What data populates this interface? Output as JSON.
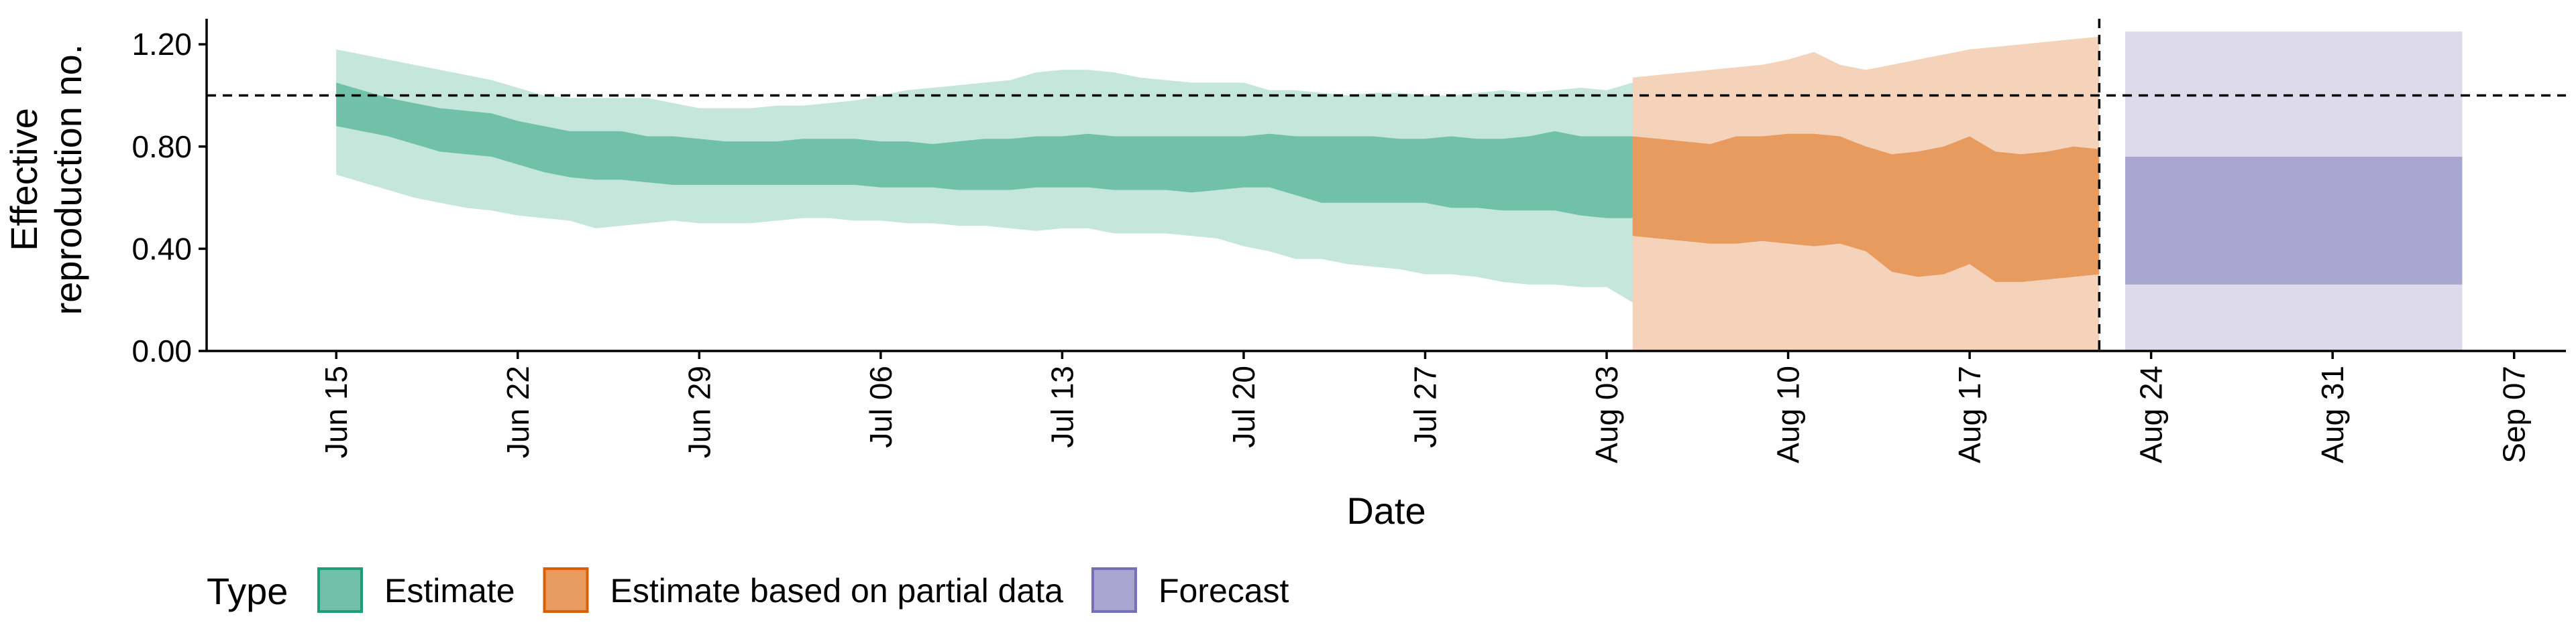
{
  "chart_data": {
    "type": "area",
    "title": "",
    "xlabel": "Date",
    "ylabel_lines": [
      "Effective",
      "reproduction no."
    ],
    "ylim": [
      0,
      1.3
    ],
    "yticks": [
      0,
      0.4,
      0.8,
      1.2
    ],
    "ytick_labels": [
      "0.00",
      "0.40",
      "0.80",
      "1.20"
    ],
    "reference_line_y": 1.0,
    "forecast_start_date": "2020-08-22",
    "xlim": [
      "2020-06-10",
      "2020-09-09"
    ],
    "xticks": [
      {
        "date": "2020-06-15",
        "label": "Jun 15"
      },
      {
        "date": "2020-06-22",
        "label": "Jun 22"
      },
      {
        "date": "2020-06-29",
        "label": "Jun 29"
      },
      {
        "date": "2020-07-06",
        "label": "Jul 06"
      },
      {
        "date": "2020-07-13",
        "label": "Jul 13"
      },
      {
        "date": "2020-07-20",
        "label": "Jul 20"
      },
      {
        "date": "2020-07-27",
        "label": "Jul 27"
      },
      {
        "date": "2020-08-03",
        "label": "Aug 03"
      },
      {
        "date": "2020-08-10",
        "label": "Aug 10"
      },
      {
        "date": "2020-08-17",
        "label": "Aug 17"
      },
      {
        "date": "2020-08-24",
        "label": "Aug 24"
      },
      {
        "date": "2020-08-31",
        "label": "Aug 31"
      },
      {
        "date": "2020-09-07",
        "label": "Sep 07"
      }
    ],
    "legend": {
      "title": "Type",
      "placement": "bottom-left",
      "entries": [
        {
          "label": "Estimate",
          "fill": "#70C1A7",
          "border": "#1B9E77"
        },
        {
          "label": "Estimate based on partial data",
          "fill": "#E89B5F",
          "border": "#D95F02"
        },
        {
          "label": "Forecast",
          "fill": "#A8A5D1",
          "border": "#7570B3"
        }
      ]
    },
    "series": [
      {
        "name": "Estimate",
        "outer_color": "#C5E6DB",
        "inner_color": "#70C1A7",
        "start_date": "2020-06-15",
        "outer_upper": [
          1.18,
          1.16,
          1.14,
          1.12,
          1.1,
          1.08,
          1.06,
          1.03,
          1.0,
          0.99,
          0.99,
          0.99,
          0.99,
          0.97,
          0.95,
          0.95,
          0.95,
          0.96,
          0.96,
          0.97,
          0.98,
          1.0,
          1.02,
          1.03,
          1.04,
          1.05,
          1.06,
          1.09,
          1.1,
          1.1,
          1.09,
          1.07,
          1.06,
          1.05,
          1.05,
          1.05,
          1.02,
          1.02,
          1.01,
          1.0,
          1.01,
          1.01,
          1.0,
          1.0,
          1.01,
          1.02,
          1.01,
          1.02,
          1.03,
          1.02,
          1.05,
          1.04,
          1.02,
          1.04,
          1.04,
          1.09,
          1.06
        ],
        "inner_upper": [
          1.05,
          1.02,
          0.99,
          0.97,
          0.95,
          0.94,
          0.93,
          0.9,
          0.88,
          0.86,
          0.86,
          0.86,
          0.84,
          0.84,
          0.83,
          0.82,
          0.82,
          0.82,
          0.83,
          0.83,
          0.83,
          0.82,
          0.82,
          0.81,
          0.82,
          0.83,
          0.83,
          0.84,
          0.84,
          0.85,
          0.84,
          0.84,
          0.84,
          0.84,
          0.84,
          0.84,
          0.85,
          0.84,
          0.84,
          0.84,
          0.84,
          0.83,
          0.83,
          0.84,
          0.83,
          0.83,
          0.84,
          0.86,
          0.84,
          0.84,
          0.84,
          0.83,
          0.84,
          0.85,
          0.85,
          0.85,
          0.86
        ],
        "inner_lower": [
          0.88,
          0.86,
          0.84,
          0.81,
          0.78,
          0.77,
          0.76,
          0.73,
          0.7,
          0.68,
          0.67,
          0.67,
          0.66,
          0.65,
          0.65,
          0.65,
          0.65,
          0.65,
          0.65,
          0.65,
          0.65,
          0.64,
          0.64,
          0.64,
          0.63,
          0.63,
          0.63,
          0.64,
          0.64,
          0.64,
          0.63,
          0.63,
          0.63,
          0.62,
          0.63,
          0.64,
          0.64,
          0.61,
          0.58,
          0.58,
          0.58,
          0.58,
          0.58,
          0.56,
          0.56,
          0.55,
          0.55,
          0.55,
          0.53,
          0.52,
          0.52,
          0.52,
          0.52,
          0.51,
          0.51,
          0.51,
          0.5
        ],
        "outer_lower": [
          0.69,
          0.66,
          0.63,
          0.6,
          0.58,
          0.56,
          0.55,
          0.53,
          0.52,
          0.51,
          0.48,
          0.49,
          0.5,
          0.51,
          0.5,
          0.5,
          0.5,
          0.51,
          0.52,
          0.52,
          0.51,
          0.51,
          0.5,
          0.5,
          0.49,
          0.49,
          0.48,
          0.47,
          0.48,
          0.48,
          0.46,
          0.46,
          0.46,
          0.45,
          0.44,
          0.41,
          0.39,
          0.36,
          0.36,
          0.34,
          0.33,
          0.32,
          0.3,
          0.3,
          0.29,
          0.27,
          0.26,
          0.26,
          0.25,
          0.25,
          0.19,
          0.25,
          0.22,
          0.18,
          0.16,
          0.2,
          0.15
        ]
      },
      {
        "name": "Estimate based on partial data",
        "outer_color": "#F5D3BA",
        "inner_color": "#E89B5F",
        "start_date": "2020-08-04",
        "outer_upper": [
          1.07,
          1.08,
          1.09,
          1.1,
          1.11,
          1.12,
          1.14,
          1.17,
          1.12,
          1.1,
          1.12,
          1.14,
          1.16,
          1.18,
          1.19,
          1.2,
          1.21,
          1.22,
          1.23
        ],
        "inner_upper": [
          0.84,
          0.83,
          0.82,
          0.81,
          0.84,
          0.84,
          0.85,
          0.85,
          0.84,
          0.8,
          0.77,
          0.78,
          0.8,
          0.84,
          0.78,
          0.77,
          0.78,
          0.8,
          0.79
        ],
        "inner_lower": [
          0.45,
          0.44,
          0.43,
          0.42,
          0.42,
          0.43,
          0.42,
          0.41,
          0.42,
          0.39,
          0.31,
          0.29,
          0.3,
          0.34,
          0.27,
          0.27,
          0.28,
          0.29,
          0.3
        ],
        "outer_lower": [
          0.0,
          0.0,
          0.0,
          0.0,
          0.0,
          0.0,
          0.0,
          0.0,
          0.0,
          0.0,
          0.0,
          0.0,
          0.0,
          0.0,
          0.0,
          0.0,
          0.0,
          0.0,
          0.0
        ]
      },
      {
        "name": "Forecast",
        "outer_color": "#DCDAEB",
        "inner_color": "#A8A5D1",
        "start_date": "2020-08-23",
        "end_date": "2020-09-05",
        "outer_upper": 1.25,
        "inner_upper": 0.76,
        "inner_lower": 0.26,
        "outer_lower": 0.0
      }
    ]
  }
}
